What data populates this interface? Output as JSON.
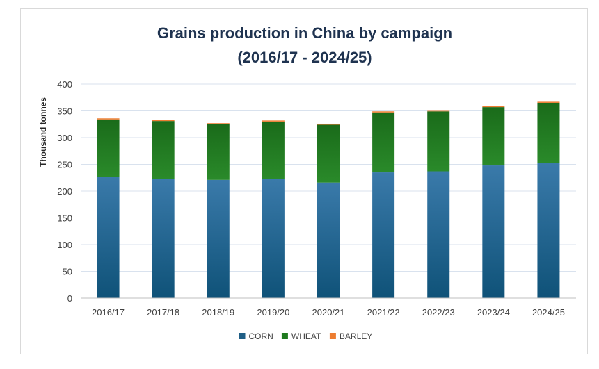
{
  "chart_data": {
    "type": "bar",
    "stacked": true,
    "title_line1": "Grains production in China by campaign",
    "title_line2": "(2016/17 - 2024/25)",
    "xlabel": "",
    "ylabel": "Thousand tonnes",
    "ylim": [
      0,
      400
    ],
    "yticks": [
      "0",
      "50",
      "100",
      "150",
      "200",
      "250",
      "300",
      "350",
      "400"
    ],
    "grid": true,
    "legend_position": "bottom",
    "categories": [
      "2016/17",
      "2017/18",
      "2018/19",
      "2019/20",
      "2020/21",
      "2021/22",
      "2022/23",
      "2023/24",
      "2024/25"
    ],
    "series": [
      {
        "name": "CORN",
        "color": "#1f5f86",
        "values": [
          227,
          223,
          221,
          223,
          216,
          235,
          237,
          248,
          253
        ]
      },
      {
        "name": "WHEAT",
        "color": "#1e7a1e",
        "values": [
          107,
          108,
          104,
          107,
          108,
          112,
          112,
          109,
          112
        ]
      },
      {
        "name": "BARLEY",
        "color": "#ed7d31",
        "values": [
          2,
          2,
          2,
          2,
          2,
          2,
          1,
          2,
          2
        ]
      }
    ]
  }
}
